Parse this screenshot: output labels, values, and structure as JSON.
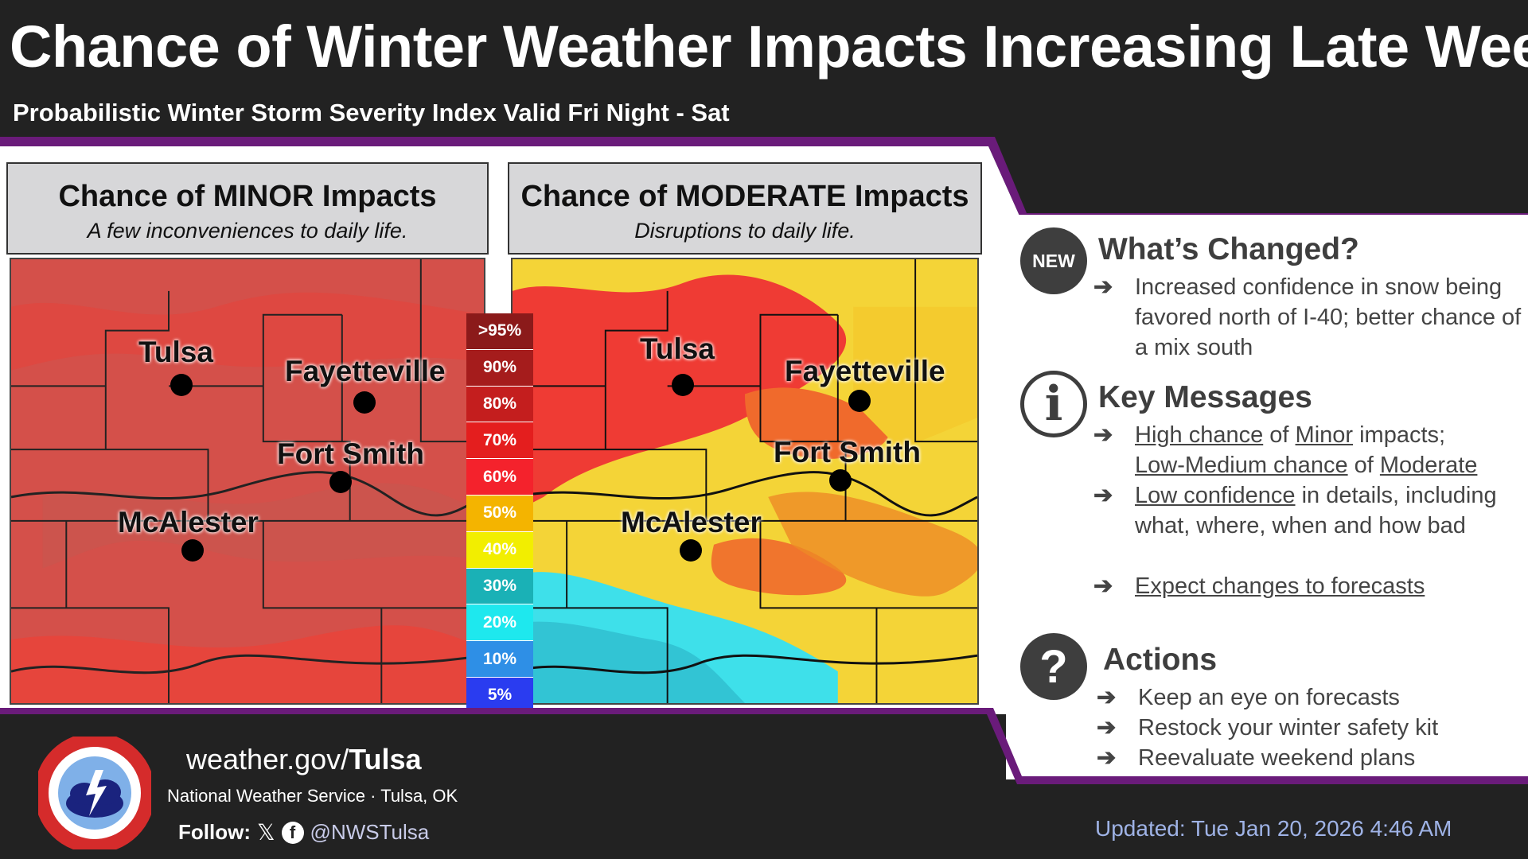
{
  "header": {
    "title": "Chance of Winter Weather Impacts Increasing Late Week",
    "subtitle": "Probabilistic Winter Storm Severity Index Valid Fri Night - Sat"
  },
  "panels": [
    {
      "heading": "Chance of MINOR Impacts",
      "subheading": "A few inconveniences to daily life."
    },
    {
      "heading": "Chance of MODERATE Impacts",
      "subheading": "Disruptions to daily life."
    }
  ],
  "cities": {
    "tulsa": "Tulsa",
    "fayetteville": "Fayetteville",
    "fort_smith": "Fort Smith",
    "mcalester": "McAlester"
  },
  "legend": [
    {
      "label": ">95%",
      "color": "#8b1a1a"
    },
    {
      "label": "90%",
      "color": "#a51c1c"
    },
    {
      "label": "80%",
      "color": "#c41e1e"
    },
    {
      "label": "70%",
      "color": "#e41e1e"
    },
    {
      "label": "60%",
      "color": "#f4222c"
    },
    {
      "label": "50%",
      "color": "#f4b400"
    },
    {
      "label": "40%",
      "color": "#f2ee00"
    },
    {
      "label": "30%",
      "color": "#1ab1b6"
    },
    {
      "label": "20%",
      "color": "#1ee8ee"
    },
    {
      "label": "10%",
      "color": "#2e8fe6"
    },
    {
      "label": "5%",
      "color": "#2a3cf0"
    }
  ],
  "sections": {
    "changed": {
      "badge": "NEW",
      "title": "What’s Changed?",
      "items": [
        "Increased confidence in snow being favored north of I-40; better chance of a mix south"
      ]
    },
    "key": {
      "title": "Key Messages",
      "items": [
        {
          "a": "High chance",
          "b": " of ",
          "c": "Minor",
          "d": " impacts;",
          "e": "Low-Medium chance",
          "f": " of ",
          "g": "Moderate"
        },
        {
          "a": "Low confidence",
          "b": " in details, including what, where, when and how bad"
        },
        {
          "a": "Expect changes to forecasts"
        }
      ]
    },
    "actions": {
      "title": "Actions",
      "items": [
        "Keep an eye on forecasts",
        "Restock your winter safety kit",
        "Reevaluate weekend plans"
      ]
    }
  },
  "arrow": "➔",
  "footer": {
    "site_prefix": "weather.gov/",
    "site_bold": "Tulsa",
    "org": "National Weather Service · Tulsa, OK",
    "follow_label": "Follow:",
    "x_icon": "𝕏",
    "handle": "@NWSTulsa",
    "updated": "Updated: Tue Jan 20, 2026 4:46 AM"
  },
  "colors": {
    "accent": "#6a1b7a",
    "background": "#222222"
  }
}
